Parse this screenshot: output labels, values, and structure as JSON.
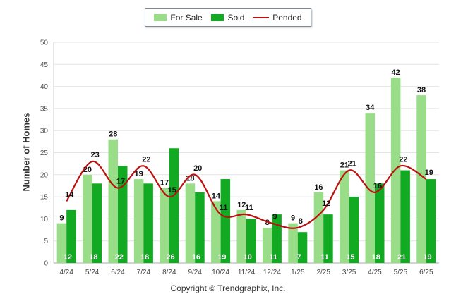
{
  "chart_data": {
    "type": "bar",
    "categories": [
      "4/24",
      "5/24",
      "6/24",
      "7/24",
      "8/24",
      "9/24",
      "10/24",
      "11/24",
      "12/24",
      "1/25",
      "2/25",
      "3/25",
      "4/25",
      "5/25",
      "6/25"
    ],
    "series": [
      {
        "name": "For Sale",
        "type": "bar",
        "color": "#99dd88",
        "values": [
          9,
          20,
          28,
          19,
          17,
          18,
          14,
          12,
          8,
          9,
          16,
          21,
          34,
          42,
          38
        ]
      },
      {
        "name": "Sold",
        "type": "bar",
        "color": "#11aa22",
        "values": [
          12,
          18,
          22,
          18,
          26,
          16,
          19,
          10,
          11,
          7,
          11,
          15,
          18,
          21,
          19
        ]
      },
      {
        "name": "Pended",
        "type": "line",
        "color": "#bb1111",
        "values": [
          14,
          23,
          17,
          22,
          15,
          20,
          11,
          11,
          9,
          8,
          12,
          21,
          16,
          22,
          19
        ]
      }
    ],
    "xlabel": "",
    "ylabel": "Number of Homes",
    "ylim": [
      0,
      50
    ],
    "yticks": [
      0,
      5,
      10,
      15,
      20,
      25,
      30,
      35,
      40,
      45,
      50
    ],
    "grid": true,
    "legend_position": "top-center"
  },
  "copyright": "Copyright © Trendgraphix, Inc."
}
